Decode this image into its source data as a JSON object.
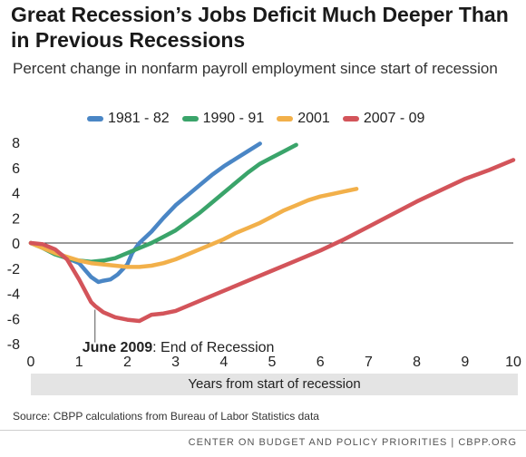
{
  "title": "Great Recession’s Jobs Deficit Much Deeper Than in Previous Recessions",
  "subtitle": "Percent change in nonfarm payroll employment since start of recession",
  "source": "Source: CBPP calculations from Bureau of Labor Statistics data",
  "footer": "CENTER ON BUDGET AND POLICY PRIORITIES | CBPP.ORG",
  "colors": {
    "1981 - 82": "#4a86c5",
    "1990 - 91": "#3aa46a",
    "2001": "#f2b04a",
    "2007 - 09": "#d3545a"
  },
  "chart_data": {
    "type": "line",
    "title": "Great Recession’s Jobs Deficit Much Deeper Than in Previous Recessions",
    "xlabel": "Years from start of recession",
    "ylabel": "Percent change in nonfarm payroll employment since start of recession",
    "xlim": [
      0,
      10
    ],
    "ylim": [
      -8,
      8
    ],
    "xticks": [
      0,
      1,
      2,
      3,
      4,
      5,
      6,
      7,
      8,
      9,
      10
    ],
    "yticks": [
      8,
      6,
      4,
      2,
      0,
      -2,
      -4,
      -6,
      -8
    ],
    "grid": false,
    "legend": "top",
    "annotation": {
      "bold": "June 2009",
      "text": ": End of Recession",
      "x": 1.33,
      "y": -5.3
    },
    "series": [
      {
        "name": "1981 - 82",
        "color": "#4a86c5",
        "x": [
          0,
          0.25,
          0.5,
          0.75,
          1.0,
          1.25,
          1.4,
          1.5,
          1.65,
          1.8,
          2.0,
          2.1,
          2.25,
          2.5,
          2.75,
          3.0,
          3.25,
          3.5,
          3.75,
          4.0,
          4.25,
          4.5,
          4.75
        ],
        "y": [
          0,
          -0.3,
          -0.6,
          -1.2,
          -1.6,
          -2.7,
          -3.1,
          -3.0,
          -2.9,
          -2.5,
          -1.7,
          -0.8,
          0.0,
          0.9,
          2.0,
          3.0,
          3.8,
          4.6,
          5.4,
          6.1,
          6.7,
          7.3,
          7.9
        ]
      },
      {
        "name": "1990 - 91",
        "color": "#3aa46a",
        "x": [
          0,
          0.25,
          0.5,
          0.75,
          1.0,
          1.25,
          1.5,
          1.75,
          2.0,
          2.25,
          2.5,
          2.75,
          3.0,
          3.25,
          3.5,
          3.75,
          4.0,
          4.25,
          4.5,
          4.75,
          5.0,
          5.25,
          5.5
        ],
        "y": [
          0,
          -0.4,
          -0.9,
          -1.2,
          -1.4,
          -1.5,
          -1.4,
          -1.2,
          -0.8,
          -0.4,
          0.0,
          0.5,
          1.0,
          1.7,
          2.4,
          3.2,
          4.0,
          4.8,
          5.6,
          6.3,
          6.8,
          7.3,
          7.8
        ]
      },
      {
        "name": "2001",
        "color": "#f2b04a",
        "x": [
          0,
          0.25,
          0.5,
          0.75,
          1.0,
          1.25,
          1.5,
          1.75,
          2.0,
          2.25,
          2.5,
          2.75,
          3.0,
          3.25,
          3.5,
          3.75,
          4.0,
          4.25,
          4.5,
          4.75,
          5.0,
          5.25,
          5.5,
          5.75,
          6.0,
          6.25,
          6.5,
          6.75
        ],
        "y": [
          0,
          -0.4,
          -0.8,
          -1.1,
          -1.4,
          -1.6,
          -1.7,
          -1.8,
          -1.9,
          -1.9,
          -1.8,
          -1.6,
          -1.3,
          -0.9,
          -0.5,
          -0.1,
          0.3,
          0.8,
          1.2,
          1.6,
          2.1,
          2.6,
          3.0,
          3.4,
          3.7,
          3.9,
          4.1,
          4.3
        ]
      },
      {
        "name": "2007 - 09",
        "color": "#d3545a",
        "x": [
          0,
          0.25,
          0.5,
          0.75,
          1.0,
          1.25,
          1.33,
          1.5,
          1.75,
          2.0,
          2.25,
          2.5,
          2.75,
          3.0,
          3.5,
          4.0,
          4.5,
          5.0,
          5.5,
          6.0,
          6.5,
          7.0,
          7.5,
          8.0,
          8.5,
          9.0,
          9.5,
          10.0
        ],
        "y": [
          0,
          -0.1,
          -0.5,
          -1.3,
          -2.9,
          -4.7,
          -5.0,
          -5.5,
          -5.9,
          -6.1,
          -6.2,
          -5.7,
          -5.6,
          -5.4,
          -4.6,
          -3.8,
          -3.0,
          -2.2,
          -1.4,
          -0.6,
          0.3,
          1.3,
          2.3,
          3.3,
          4.2,
          5.1,
          5.8,
          6.6
        ]
      }
    ]
  }
}
